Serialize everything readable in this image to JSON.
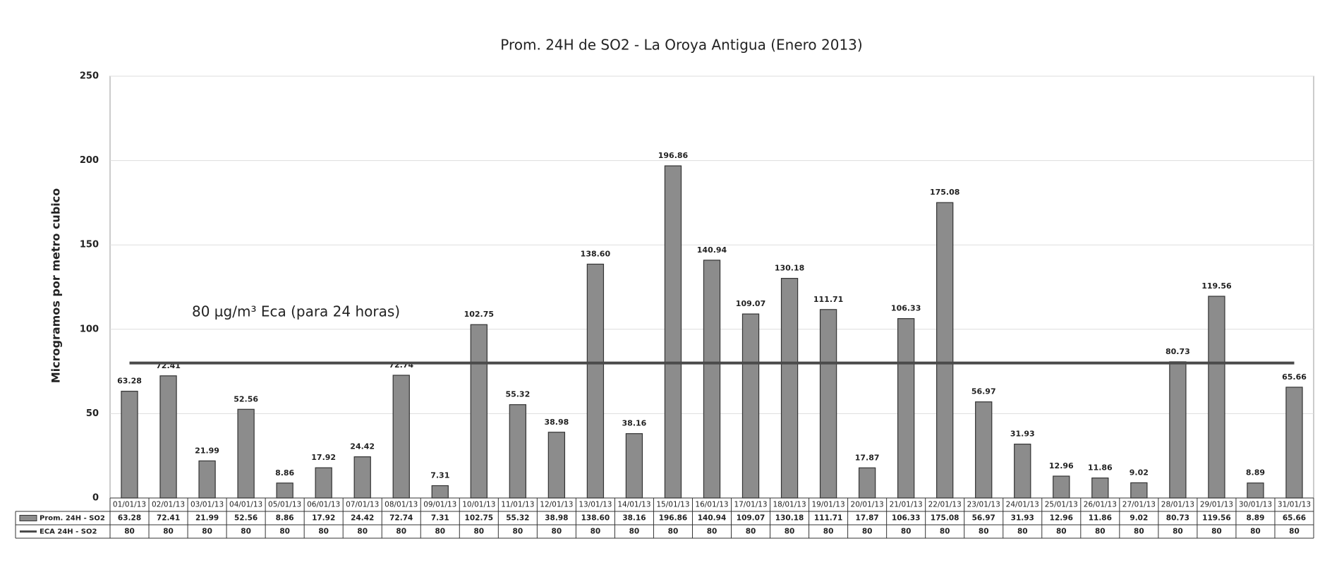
{
  "chart_data": {
    "type": "bar",
    "title": "Prom. 24H de SO2 - La Oroya Antigua (Enero 2013)",
    "y_label": "Microgramos por metro cubico",
    "annotation": "80 µg/m³ Eca (para 24 horas)",
    "categories": [
      "01/01/13",
      "02/01/13",
      "03/01/13",
      "04/01/13",
      "05/01/13",
      "06/01/13",
      "07/01/13",
      "08/01/13",
      "09/01/13",
      "10/01/13",
      "11/01/13",
      "12/01/13",
      "13/01/13",
      "14/01/13",
      "15/01/13",
      "16/01/13",
      "17/01/13",
      "18/01/13",
      "19/01/13",
      "20/01/13",
      "21/01/13",
      "22/01/13",
      "23/01/13",
      "24/01/13",
      "25/01/13",
      "26/01/13",
      "27/01/13",
      "28/01/13",
      "29/01/13",
      "30/01/13",
      "31/01/13"
    ],
    "series": [
      {
        "name": "Prom. 24H - SO2",
        "type": "bar",
        "color": "#8c8c8c",
        "values": [
          63.28,
          72.41,
          21.99,
          52.56,
          8.86,
          17.92,
          24.42,
          72.74,
          7.31,
          102.75,
          55.32,
          38.98,
          138.6,
          38.16,
          196.86,
          140.94,
          109.07,
          130.18,
          111.71,
          17.87,
          106.33,
          175.08,
          56.97,
          31.93,
          12.96,
          11.86,
          9.02,
          80.73,
          119.56,
          8.89,
          65.66
        ],
        "value_labels": [
          "63.28",
          "72.41",
          "21.99",
          "52.56",
          "8.86",
          "17.92",
          "24.42",
          "72.74",
          "7.31",
          "102.75",
          "55.32",
          "38.98",
          "138.60",
          "38.16",
          "196.86",
          "140.94",
          "109.07",
          "130.18",
          "111.71",
          "17.87",
          "106.33",
          "175.08",
          "56.97",
          "31.93",
          "12.96",
          "11.86",
          "9.02",
          "80.73",
          "119.56",
          "8.89",
          "65.66"
        ]
      },
      {
        "name": "ECA 24H - SO2",
        "type": "line",
        "color": "#4a4a4a",
        "values": [
          80,
          80,
          80,
          80,
          80,
          80,
          80,
          80,
          80,
          80,
          80,
          80,
          80,
          80,
          80,
          80,
          80,
          80,
          80,
          80,
          80,
          80,
          80,
          80,
          80,
          80,
          80,
          80,
          80,
          80,
          80
        ]
      }
    ],
    "ylim": [
      0,
      250
    ],
    "yticks": [
      0,
      50,
      100,
      150,
      200,
      250
    ],
    "grid": true
  }
}
